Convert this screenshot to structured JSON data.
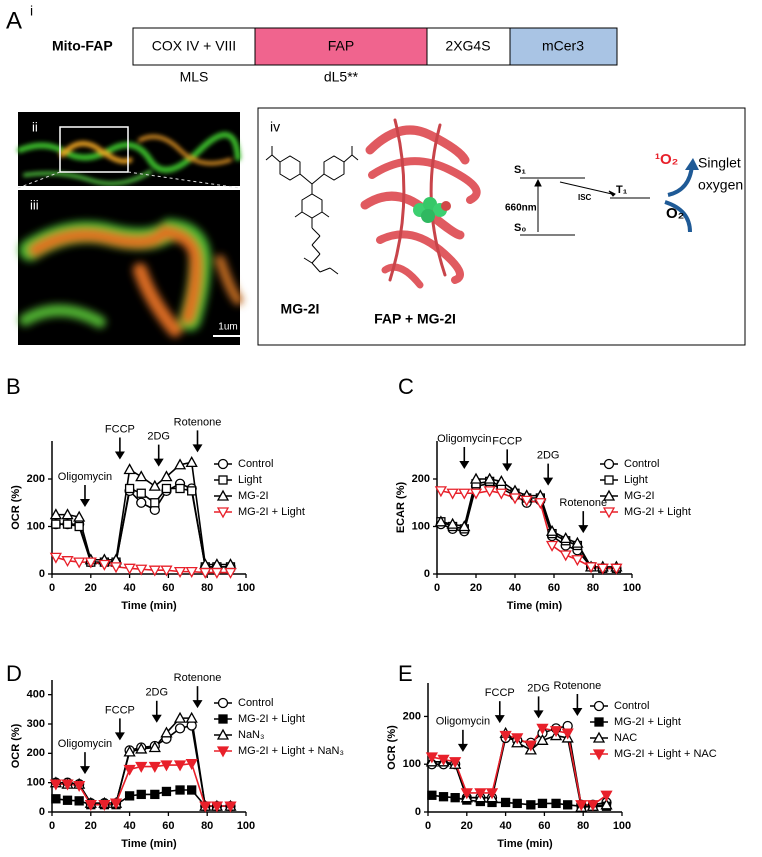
{
  "panel_a": {
    "letter": "A",
    "sub_i": "i",
    "construct": "Mito-FAP",
    "segments": [
      "COX IV + VIII",
      "FAP",
      "2XG4S",
      "mCer3"
    ],
    "under_labels": [
      "MLS",
      "dL5**"
    ],
    "sub_ii": "ii",
    "sub_iii": "iii",
    "scale": "1um",
    "sub_iv": "iv",
    "dye": "MG-2I",
    "complex": "FAP + MG-2I",
    "s1": "S₁",
    "s0": "S₀",
    "t1": "T₁",
    "wavelength": "660nm",
    "isc": "ISC",
    "singlet_symbol": "¹O₂",
    "singlet_word1": "Singlet",
    "singlet_word2": "oxygen",
    "oxygen": "O₂"
  },
  "chart_data": [
    {
      "type": "line",
      "label": "B",
      "ylabel": "OCR (%)",
      "xlabel": "Time (min)",
      "legend": "upper right",
      "x": [
        2,
        8,
        14,
        20,
        27,
        33,
        40,
        46,
        53,
        59,
        66,
        72,
        79,
        85,
        92
      ],
      "xlim": [
        0,
        100
      ],
      "xticks": [
        0,
        20,
        40,
        60,
        80,
        100
      ],
      "ylim": [
        0,
        280
      ],
      "yticks": [
        0,
        100,
        200
      ],
      "annotations": [
        {
          "text": "Oligomycin",
          "x": 17
        },
        {
          "text": "FCCP",
          "x": 35
        },
        {
          "text": "2DG",
          "x": 55
        },
        {
          "text": "Rotenone",
          "x": 75
        }
      ],
      "series": [
        {
          "name": "Control",
          "color": "#000000",
          "marker": "circle",
          "filled": false,
          "values": [
            105,
            105,
            105,
            25,
            25,
            25,
            175,
            150,
            135,
            175,
            190,
            180,
            15,
            15,
            15
          ]
        },
        {
          "name": "Light",
          "color": "#000000",
          "marker": "square",
          "filled": false,
          "values": [
            105,
            105,
            100,
            25,
            25,
            25,
            180,
            170,
            150,
            180,
            180,
            175,
            15,
            15,
            15
          ]
        },
        {
          "name": "MG-2I",
          "color": "#000000",
          "marker": "triangle-up",
          "filled": false,
          "values": [
            125,
            125,
            120,
            30,
            30,
            30,
            220,
            205,
            185,
            205,
            230,
            235,
            20,
            20,
            20
          ]
        },
        {
          "name": "MG-2I + Light",
          "color": "#e8202a",
          "marker": "triangle-down",
          "filled": false,
          "values": [
            35,
            28,
            25,
            25,
            20,
            15,
            12,
            10,
            8,
            8,
            5,
            5,
            3,
            3,
            3
          ]
        }
      ]
    },
    {
      "type": "line",
      "label": "C",
      "ylabel": "ECAR (%)",
      "xlabel": "Time (min)",
      "legend": "upper right",
      "x": [
        2,
        8,
        14,
        20,
        27,
        33,
        40,
        46,
        53,
        59,
        66,
        72,
        79,
        85,
        92
      ],
      "xlim": [
        0,
        100
      ],
      "xticks": [
        0,
        20,
        40,
        60,
        80,
        100
      ],
      "ylim": [
        0,
        280
      ],
      "yticks": [
        0,
        100,
        200
      ],
      "annotations": [
        {
          "text": "Oligomycin",
          "x": 14
        },
        {
          "text": "FCCP",
          "x": 36
        },
        {
          "text": "2DG",
          "x": 57
        },
        {
          "text": "Rotenone",
          "x": 75
        }
      ],
      "series": [
        {
          "name": "Control",
          "color": "#000000",
          "marker": "circle",
          "filled": false,
          "values": [
            105,
            95,
            90,
            185,
            190,
            180,
            165,
            150,
            155,
            80,
            60,
            50,
            15,
            12,
            12
          ]
        },
        {
          "name": "Light",
          "color": "#000000",
          "marker": "square",
          "filled": false,
          "values": [
            110,
            100,
            95,
            190,
            195,
            185,
            170,
            160,
            160,
            85,
            70,
            60,
            15,
            12,
            12
          ]
        },
        {
          "name": "MG-2I",
          "color": "#000000",
          "marker": "triangle-up",
          "filled": false,
          "values": [
            110,
            105,
            100,
            200,
            200,
            195,
            175,
            165,
            165,
            90,
            75,
            65,
            15,
            15,
            15
          ]
        },
        {
          "name": "MG-2I + Light",
          "color": "#e8202a",
          "marker": "triangle-down",
          "filled": false,
          "values": [
            175,
            170,
            170,
            170,
            175,
            170,
            160,
            155,
            150,
            60,
            40,
            30,
            15,
            12,
            12
          ]
        }
      ]
    },
    {
      "type": "line",
      "label": "D",
      "ylabel": "OCR (%)",
      "xlabel": "Time (min)",
      "legend": "upper right",
      "x": [
        2,
        8,
        14,
        20,
        27,
        33,
        40,
        46,
        53,
        59,
        66,
        72,
        79,
        85,
        92
      ],
      "xlim": [
        0,
        100
      ],
      "xticks": [
        0,
        20,
        40,
        60,
        80,
        100
      ],
      "ylim": [
        0,
        450
      ],
      "yticks": [
        0,
        100,
        200,
        300,
        400
      ],
      "annotations": [
        {
          "text": "Oligomycin",
          "x": 17
        },
        {
          "text": "FCCP",
          "x": 35
        },
        {
          "text": "2DG",
          "x": 54
        },
        {
          "text": "Rotenone",
          "x": 75
        }
      ],
      "series": [
        {
          "name": "Control",
          "color": "#000000",
          "marker": "circle",
          "filled": false,
          "values": [
            100,
            100,
            95,
            30,
            30,
            30,
            210,
            220,
            225,
            250,
            285,
            295,
            20,
            20,
            20
          ]
        },
        {
          "name": "MG-2I + Light",
          "color": "#000000",
          "marker": "square",
          "filled": true,
          "values": [
            45,
            40,
            38,
            25,
            25,
            25,
            55,
            60,
            60,
            70,
            75,
            75,
            20,
            20,
            20
          ]
        },
        {
          "name": "NaN₃",
          "color": "#000000",
          "marker": "triangle-up",
          "filled": false,
          "values": [
            100,
            95,
            95,
            30,
            30,
            30,
            205,
            215,
            220,
            270,
            320,
            320,
            20,
            20,
            20
          ]
        },
        {
          "name": "MG-2I + Light + NaN₃",
          "color": "#e8202a",
          "marker": "triangle-down",
          "filled": true,
          "values": [
            95,
            95,
            90,
            25,
            25,
            30,
            145,
            155,
            155,
            160,
            160,
            165,
            20,
            20,
            20
          ]
        }
      ]
    },
    {
      "type": "line",
      "label": "E",
      "ylabel": "OCR (%)",
      "xlabel": "Time (min)",
      "legend": "upper right",
      "x": [
        2,
        8,
        14,
        20,
        27,
        33,
        40,
        46,
        53,
        59,
        66,
        72,
        79,
        85,
        92
      ],
      "xlim": [
        0,
        100
      ],
      "xticks": [
        0,
        20,
        40,
        60,
        80,
        100
      ],
      "ylim": [
        0,
        270
      ],
      "yticks": [
        0,
        100,
        200
      ],
      "annotations": [
        {
          "text": "Oligomycin",
          "x": 18
        },
        {
          "text": "FCCP",
          "x": 37
        },
        {
          "text": "2DG",
          "x": 57
        },
        {
          "text": "Rotenone",
          "x": 77
        }
      ],
      "series": [
        {
          "name": "Control",
          "color": "#000000",
          "marker": "circle",
          "filled": false,
          "values": [
            100,
            100,
            100,
            30,
            30,
            30,
            155,
            150,
            145,
            165,
            175,
            180,
            15,
            15,
            20
          ]
        },
        {
          "name": "MG-2I + Light",
          "color": "#000000",
          "marker": "square",
          "filled": true,
          "values": [
            35,
            32,
            30,
            25,
            22,
            20,
            20,
            18,
            15,
            18,
            18,
            15,
            12,
            12,
            12
          ]
        },
        {
          "name": "NAC",
          "color": "#000000",
          "marker": "triangle-up",
          "filled": false,
          "values": [
            105,
            105,
            100,
            30,
            30,
            30,
            165,
            145,
            130,
            150,
            160,
            155,
            10,
            12,
            15
          ]
        },
        {
          "name": "MG-2I + Light + NAC",
          "color": "#e8202a",
          "marker": "triangle-down",
          "filled": true,
          "values": [
            115,
            110,
            105,
            40,
            40,
            40,
            160,
            155,
            140,
            175,
            170,
            165,
            15,
            15,
            35
          ]
        }
      ]
    }
  ]
}
